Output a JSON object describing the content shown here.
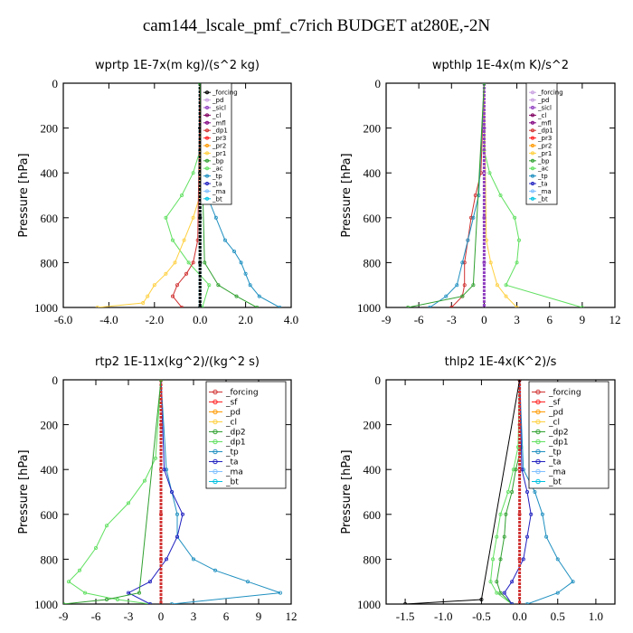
{
  "title": "cam144_lscale_pmf_c7rich  BUDGET at280E,-2N",
  "chart_data": [
    {
      "type": "line",
      "title": "wprtp   1E-7x(m kg)/(s^2 kg)",
      "ylabel": "Pressure [hPa]",
      "xlim": [
        -6,
        4
      ],
      "ylim": [
        1000,
        0
      ],
      "xticks": [
        -6.0,
        -4.0,
        -2.0,
        0.0,
        2.0,
        4.0
      ],
      "xtick_labels": [
        "-6.0",
        "-4.0",
        "-2.0",
        "0.0",
        "2.0",
        "4.0"
      ],
      "yticks": [
        0,
        200,
        400,
        600,
        800,
        1000
      ],
      "legend": [
        "_forcing",
        "_pd",
        "_sicl",
        "_cl",
        "_mfl",
        "_dp1",
        "_pr3",
        "_pr2",
        "_pr1",
        "_bp",
        "_ac",
        "_tp",
        "_ta",
        "_ma",
        "_bt"
      ],
      "legend_colors": [
        "#000000",
        "#c8a0e0",
        "#9040c0",
        "#800060",
        "#800080",
        "#d03030",
        "#ff2020",
        "#ff9900",
        "#ffd040",
        "#30a030",
        "#60e060",
        "#2090c0",
        "#2020c0",
        "#80c0ff",
        "#00c0e0"
      ],
      "series": [
        {
          "name": "_ac",
          "p": [
            0,
            300,
            400,
            500,
            600,
            700,
            800,
            900,
            1000
          ],
          "values": [
            0,
            0,
            -0.3,
            -0.8,
            -1.5,
            -1.2,
            -0.5,
            0.4,
            0.1
          ]
        },
        {
          "name": "_tp",
          "p": [
            0,
            300,
            400,
            500,
            600,
            700,
            750,
            800,
            850,
            900,
            950,
            1000
          ],
          "values": [
            0,
            0,
            0.1,
            0.3,
            0.7,
            1.1,
            1.5,
            1.8,
            2.0,
            2.2,
            2.6,
            3.5
          ]
        },
        {
          "name": "_pr1",
          "p": [
            0,
            500,
            600,
            700,
            800,
            850,
            900,
            950,
            980,
            1000
          ],
          "values": [
            0,
            0,
            -0.3,
            -0.7,
            -1.1,
            -1.5,
            -2.0,
            -2.3,
            -2.5,
            -4.5
          ]
        },
        {
          "name": "_dp1",
          "p": [
            0,
            700,
            800,
            850,
            900,
            950,
            1000
          ],
          "values": [
            0,
            -0.1,
            -0.3,
            -0.6,
            -1.0,
            -1.2,
            -0.8
          ]
        },
        {
          "name": "_bt",
          "p": [
            0,
            200,
            400,
            600,
            800,
            1000
          ],
          "values": [
            0,
            0,
            0,
            0,
            0,
            0
          ]
        },
        {
          "name": "_forcing",
          "p": [
            0,
            200,
            400,
            600,
            800,
            1000
          ],
          "values": [
            0,
            0,
            0,
            0,
            0,
            0
          ]
        },
        {
          "name": "_bp",
          "p": [
            0,
            800,
            900,
            950,
            1000
          ],
          "values": [
            0,
            0.2,
            0.8,
            1.6,
            2.5
          ]
        }
      ]
    },
    {
      "type": "line",
      "title": "wpthlp   1E-4x(m K)/s^2",
      "ylabel": "Pressure [hPa]",
      "xlim": [
        -9,
        12
      ],
      "ylim": [
        1000,
        0
      ],
      "xticks": [
        -9,
        -6,
        -3,
        0,
        3,
        6,
        9,
        12
      ],
      "xtick_labels": [
        "-9",
        "-6",
        "-3",
        "0",
        "3",
        "6",
        "9",
        "12"
      ],
      "yticks": [
        0,
        200,
        400,
        600,
        800,
        1000
      ],
      "legend": [
        "_forcing",
        "_pd",
        "_sicl",
        "_cl",
        "_mfl",
        "_dp1",
        "_pr3",
        "_pr2",
        "_pr1",
        "_bp",
        "_ac",
        "_tp",
        "_ta",
        "_ma",
        "_bt"
      ],
      "legend_colors": [
        "#c8a0e0",
        "#c8a0e0",
        "#9040c0",
        "#800060",
        "#800080",
        "#d03030",
        "#ff2020",
        "#ff9900",
        "#ffd040",
        "#30a030",
        "#60e060",
        "#2090c0",
        "#2020c0",
        "#80c0ff",
        "#00c0e0"
      ],
      "series": [
        {
          "name": "_ac",
          "p": [
            0,
            300,
            400,
            500,
            600,
            700,
            800,
            900,
            1000
          ],
          "values": [
            0,
            0,
            0.5,
            1.5,
            2.8,
            3.2,
            3.0,
            2.0,
            9.0
          ]
        },
        {
          "name": "_dp1",
          "p": [
            0,
            400,
            500,
            600,
            700,
            800,
            900,
            950,
            1000
          ],
          "values": [
            0,
            -0.3,
            -0.8,
            -1.2,
            -1.5,
            -1.8,
            -1.8,
            -2.0,
            -3.0
          ]
        },
        {
          "name": "_tp",
          "p": [
            0,
            500,
            600,
            700,
            800,
            900,
            950,
            1000
          ],
          "values": [
            0,
            -0.5,
            -1.0,
            -1.5,
            -2.0,
            -2.5,
            -3.5,
            -5.0
          ]
        },
        {
          "name": "_pr1",
          "p": [
            0,
            700,
            800,
            900,
            950,
            1000
          ],
          "values": [
            0,
            0.2,
            0.6,
            1.2,
            2.0,
            3.0
          ]
        },
        {
          "name": "_sicl",
          "p": [
            0,
            200,
            400,
            600,
            800,
            1000
          ],
          "values": [
            0,
            0,
            0,
            0,
            0,
            0
          ]
        },
        {
          "name": "_bp",
          "p": [
            0,
            900,
            950,
            1000
          ],
          "values": [
            0,
            -1.0,
            -2.0,
            -7.0
          ]
        }
      ]
    },
    {
      "type": "line",
      "title": "rtp2   1E-11x(kg^2)/(kg^2 s)",
      "ylabel": "Pressure [hPa]",
      "xlim": [
        -9,
        12
      ],
      "ylim": [
        1000,
        0
      ],
      "xticks": [
        -9,
        -6,
        -3,
        0,
        3,
        6,
        9,
        12
      ],
      "xtick_labels": [
        "-9",
        "-6",
        "-3",
        "0",
        "3",
        "6",
        "9",
        "12"
      ],
      "yticks": [
        0,
        200,
        400,
        600,
        800,
        1000
      ],
      "legend": [
        "_forcing",
        "_sf",
        "_pd",
        "_cl",
        "_dp2",
        "_dp1",
        "_tp",
        "_ta",
        "_ma",
        "_bt"
      ],
      "legend_colors": [
        "#d03030",
        "#ff2020",
        "#ff9900",
        "#ffd040",
        "#30a030",
        "#60e060",
        "#2090c0",
        "#2020c0",
        "#80c0ff",
        "#00c0e0"
      ],
      "series": [
        {
          "name": "_dp1",
          "p": [
            0,
            350,
            450,
            550,
            650,
            750,
            850,
            900,
            950,
            980,
            1000
          ],
          "values": [
            0,
            -0.5,
            -1.5,
            -3.0,
            -5.0,
            -6.0,
            -7.5,
            -8.5,
            -7.0,
            -4.0,
            -1.0
          ]
        },
        {
          "name": "_tp",
          "p": [
            0,
            400,
            500,
            600,
            700,
            800,
            850,
            900,
            950,
            1000
          ],
          "values": [
            0,
            0.5,
            1.0,
            1.5,
            1.5,
            3.0,
            5.0,
            8.0,
            11.0,
            1.0
          ]
        },
        {
          "name": "_ta",
          "p": [
            0,
            400,
            500,
            600,
            700,
            800,
            900,
            950,
            1000
          ],
          "values": [
            0,
            0.3,
            1.0,
            2.0,
            1.5,
            0.5,
            -1.0,
            -3.0,
            -1.0
          ]
        },
        {
          "name": "_forcing",
          "p": [
            0,
            200,
            400,
            600,
            800,
            1000
          ],
          "values": [
            0,
            0,
            0,
            0,
            0,
            0
          ]
        },
        {
          "name": "_dp2",
          "p": [
            0,
            950,
            980,
            1000
          ],
          "values": [
            0,
            -2.0,
            -5.0,
            -9.0
          ]
        }
      ]
    },
    {
      "type": "line",
      "title": "thlp2   1E-4x(K^2)/s",
      "ylabel": "Pressure [hPa]",
      "xlim": [
        -1.75,
        1.25
      ],
      "ylim": [
        1000,
        0
      ],
      "xticks": [
        -1.5,
        -1.0,
        -0.5,
        0.0,
        0.5,
        1.0
      ],
      "xtick_labels": [
        "-1.5",
        "-1.0",
        "-0.5",
        "0.0",
        "0.5",
        "1.0"
      ],
      "yticks": [
        0,
        200,
        400,
        600,
        800,
        1000
      ],
      "legend": [
        "_forcing",
        "_sf",
        "_pd",
        "_cl",
        "_dp2",
        "_dp1",
        "_tp",
        "_ta",
        "_ma",
        "_bt"
      ],
      "legend_colors": [
        "#d03030",
        "#ff2020",
        "#ff9900",
        "#ffd040",
        "#30a030",
        "#60e060",
        "#2090c0",
        "#2020c0",
        "#80c0ff",
        "#00c0e0"
      ],
      "series": [
        {
          "name": "_dp1",
          "p": [
            0,
            300,
            400,
            500,
            600,
            700,
            800,
            900,
            950,
            1000
          ],
          "values": [
            0,
            -0.02,
            -0.08,
            -0.15,
            -0.25,
            -0.3,
            -0.35,
            -0.38,
            -0.3,
            -0.1
          ]
        },
        {
          "name": "_dp2",
          "p": [
            0,
            300,
            400,
            500,
            600,
            700,
            800,
            900,
            950,
            1000
          ],
          "values": [
            0,
            0.02,
            -0.05,
            -0.1,
            -0.18,
            -0.2,
            -0.25,
            -0.3,
            -0.25,
            -0.1
          ]
        },
        {
          "name": "_tp",
          "p": [
            0,
            400,
            500,
            600,
            700,
            800,
            900,
            950,
            1000
          ],
          "values": [
            0,
            0.05,
            0.2,
            0.3,
            0.35,
            0.5,
            0.7,
            0.5,
            0.1
          ]
        },
        {
          "name": "_ta",
          "p": [
            0,
            400,
            500,
            600,
            700,
            800,
            900,
            950,
            1000
          ],
          "values": [
            0,
            0.03,
            0.1,
            0.15,
            0.1,
            0.05,
            -0.1,
            -0.2,
            -0.1
          ]
        },
        {
          "name": "_forcing",
          "p": [
            0,
            200,
            400,
            600,
            800,
            1000
          ],
          "values": [
            0,
            0,
            0,
            0,
            0,
            0
          ]
        },
        {
          "name": "_bp",
          "p": [
            0,
            980,
            1000
          ],
          "values": [
            0,
            -0.5,
            -1.5
          ]
        }
      ]
    }
  ]
}
